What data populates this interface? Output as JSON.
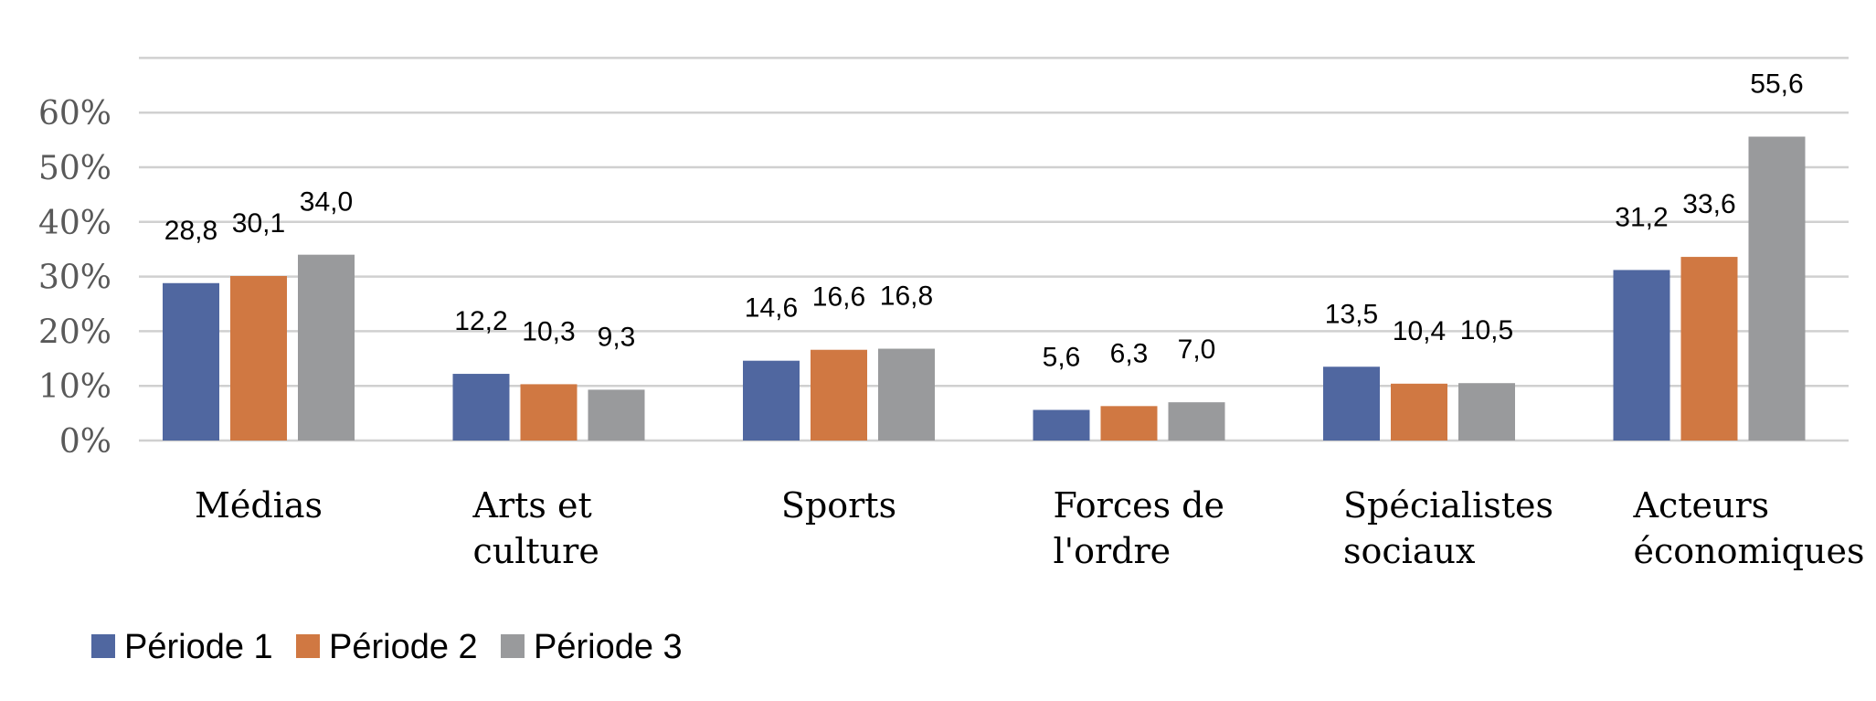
{
  "chart_data": {
    "type": "bar",
    "categories": [
      [
        "Médias"
      ],
      [
        "Arts et",
        "culture"
      ],
      [
        "Sports"
      ],
      [
        "Forces de",
        "l'ordre"
      ],
      [
        "Spécialistes",
        "sociaux"
      ],
      [
        "Acteurs",
        "économiques"
      ]
    ],
    "series": [
      {
        "name": "Période 1",
        "color": "#5067A0",
        "values": [
          28.8,
          12.2,
          14.6,
          5.6,
          13.5,
          31.2
        ],
        "labels": [
          "28,8",
          "12,2",
          "14,6",
          "5,6",
          "13,5",
          "31,2"
        ]
      },
      {
        "name": "Période 2",
        "color": "#D07842",
        "values": [
          30.1,
          10.3,
          16.6,
          6.3,
          10.4,
          33.6
        ],
        "labels": [
          "30,1",
          "10,3",
          "16,6",
          "6,3",
          "10,4",
          "33,6"
        ]
      },
      {
        "name": "Période 3",
        "color": "#999A9C",
        "values": [
          34.0,
          9.3,
          16.8,
          7.0,
          10.5,
          55.6
        ],
        "labels": [
          "34,0",
          "9,3",
          "16,8",
          "7,0",
          "10,5",
          "55,6"
        ]
      }
    ],
    "y_ticks": [
      "0%",
      "10%",
      "20%",
      "30%",
      "40%",
      "50%",
      "60%"
    ],
    "ylim": [
      0,
      70
    ],
    "grid": true,
    "legend_position": "bottom-left",
    "title": "",
    "xlabel": "",
    "ylabel": ""
  }
}
